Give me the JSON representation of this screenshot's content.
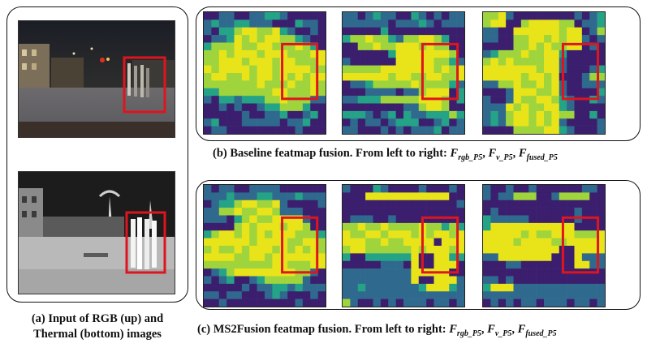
{
  "caption_a": {
    "line1": "(a) Input of RGB (up) and",
    "line2": "Thermal (bottom) images"
  },
  "caption_b": {
    "text": "(b) Baseline featmap fusion. From left to right: ",
    "f1": "F",
    "s1": "rgb_P5",
    "sep1": ", ",
    "f2": "F",
    "s2": "v_P5",
    "sep2": ", ",
    "f3": "F",
    "s3": "fused_P5"
  },
  "caption_c": {
    "text": "(c) MS2Fusion featmap fusion. From left to right: ",
    "f1": "F",
    "s1": "rgb_P5",
    "sep1": ", ",
    "f2": "F",
    "s2": "v_P5",
    "sep2": ", ",
    "f3": "F",
    "s3": "fused_P5"
  },
  "colors": {
    "highlight_box": "#e0141e",
    "viridis_low": "#3b1f6e",
    "viridis_high": "#e8e419"
  },
  "heatmaps": {
    "b_rgb": [
      "0011001122100000",
      "1211221110002110",
      "1022344334210010",
      "0112434344332100",
      "2333433443334320",
      "3343444344433344",
      "3344434443443334",
      "4344443443444433",
      "3443343443434344",
      "3333333433343343",
      "2233333334433343",
      "1022122233433311",
      "0010100122333200",
      "0000010011200120",
      "1200011111011200",
      "0110000000001000"
    ],
    "b_v": [
      "1101211002101011",
      "1111110111210111",
      "0000020000000000",
      "2334332133443200",
      "0033433444343300",
      "0000002444444430",
      "1000000444443321",
      "3333344444443434",
      "4444443443344334",
      "0112333334333321",
      "0001111011344402",
      "1122233333444302",
      "0000000011344300",
      "2221012021122232",
      "0101101222001201",
      "1100010101112011"
    ],
    "b_fused": [
      "3341000000001012",
      "3440034444330112",
      "1100444444344013",
      "1100334434344101",
      "0000334343344010",
      "1233343344200000",
      "3434333344100000",
      "4444444344100012",
      "4444434434000133",
      "1133433434100111",
      "0001444334100002",
      "1001433443210021",
      "1114343344210000",
      "1213443434330020",
      "1213443434100001",
      "0000333344210001"
    ],
    "c_rgb": [
      "1011001111000000",
      "1112111221112111",
      "0122344334100001",
      "1133433443111000",
      "1110234334444100",
      "0000343444344300",
      "2344343434443332",
      "4444443444433443",
      "3433434443434343",
      "4444334434444444",
      "3333333334433344",
      "0123444444443310",
      "1012001233333100",
      "0000010112212111",
      "1101100012100010",
      "0010000000001000"
    ],
    "c_v": [
      "1000210000100010",
      "0004444444444400",
      "0000000000000001",
      "0000000000000000",
      "0111001000000000",
      "3343343333433232",
      "4334434443434434",
      "4443343344440444",
      "3443333334344434",
      "2002222224004422",
      "0000011104004440",
      "1111111114444400",
      "1111111114004441",
      "1121111111244421",
      "1111111111111111",
      "3100101011101101"
    ],
    "c_fused": [
      "1001001000000110",
      "1011333001333300",
      "0000000000000000",
      "0100000000001000",
      "2111110000001000",
      "2444444444440000",
      "4444434334443334",
      "4444344443344444",
      "4444444444004444",
      "1144444440004111",
      "0001100000004411",
      "0000000000000000",
      "1101000000000000",
      "2444111111111111",
      "1111111111111111",
      "0101011011101101"
    ]
  }
}
